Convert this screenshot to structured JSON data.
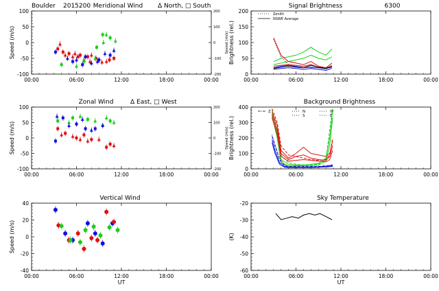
{
  "header": {
    "site": "Boulder",
    "date": "2015200"
  },
  "colors": {
    "red": "#e01010",
    "green": "#18d018",
    "blue": "#1010e0",
    "black": "#000000"
  },
  "time_ticks": [
    "00:00",
    "06:00",
    "12:00",
    "18:00",
    "00:00"
  ],
  "chart_data": [
    {
      "id": "meridional",
      "type": "scatter",
      "title": "Meridional Wind",
      "legend": "Δ North, □ South",
      "ylabel": "Speed (m/s)",
      "ylabel_right": "Speed (m/s)",
      "xlabel": "",
      "xlim": [
        0,
        24
      ],
      "ylim": [
        -100,
        100
      ],
      "yticks": [
        "100",
        "50",
        "0",
        "-50",
        "-100"
      ],
      "yticks_right": [
        "200",
        "100",
        "0",
        "-100",
        "-200"
      ],
      "series": [
        {
          "color": "red",
          "x": [
            3.5,
            4.5,
            5.0,
            5.5,
            6.5,
            7.0,
            7.5,
            8.0,
            9.0,
            10.0,
            11.0,
            3.8,
            4.2,
            5.8,
            6.2,
            7.8,
            8.6,
            9.4,
            10.4
          ],
          "y": [
            -20,
            -40,
            -35,
            -45,
            -40,
            -55,
            -45,
            -40,
            -55,
            -60,
            -50,
            -5,
            -30,
            -35,
            -45,
            -60,
            -50,
            -62,
            -55
          ]
        },
        {
          "color": "green",
          "x": [
            4.0,
            6.0,
            7.0,
            8.5,
            9.5,
            10.0,
            10.5,
            11.2,
            8.7,
            9.6
          ],
          "y": [
            -70,
            -75,
            -60,
            -50,
            25,
            25,
            15,
            5,
            -15,
            0
          ]
        },
        {
          "color": "blue",
          "x": [
            3.2,
            4.8,
            5.5,
            6.0,
            7.2,
            8.0,
            9.0,
            9.8,
            10.5,
            11.0,
            6.8,
            8.8
          ],
          "y": [
            -30,
            -50,
            -60,
            -55,
            -45,
            -65,
            -55,
            -35,
            -40,
            -25,
            -70,
            -60
          ]
        }
      ]
    },
    {
      "id": "zonal",
      "type": "scatter",
      "title": "Zonal Wind",
      "legend": "Δ East, □ West",
      "ylabel": "Speed (m/s)",
      "ylabel_right": "Speed (m/s)",
      "xlabel": "",
      "xlim": [
        0,
        24
      ],
      "ylim": [
        -100,
        100
      ],
      "yticks": [
        "100",
        "50",
        "0",
        "-50",
        "-100"
      ],
      "yticks_right": [
        "200",
        "100",
        "0",
        "-100",
        "-200"
      ],
      "series": [
        {
          "color": "red",
          "x": [
            3.5,
            4.0,
            4.5,
            5.5,
            6.0,
            6.5,
            7.0,
            7.5,
            8.0,
            9.0,
            10.0,
            11.0,
            10.5
          ],
          "y": [
            30,
            10,
            15,
            5,
            0,
            -5,
            10,
            -10,
            -5,
            -5,
            -30,
            -25,
            -20
          ]
        },
        {
          "color": "green",
          "x": [
            3.5,
            5.0,
            5.5,
            6.5,
            7.5,
            8.5,
            9.5,
            10.0,
            10.5,
            11.0
          ],
          "y": [
            55,
            50,
            65,
            70,
            60,
            55,
            40,
            65,
            55,
            50
          ]
        },
        {
          "color": "blue",
          "x": [
            3.2,
            3.4,
            4.2,
            5.0,
            6.0,
            6.8,
            7.2,
            8.0,
            8.5,
            9.5
          ],
          "y": [
            -10,
            70,
            65,
            40,
            45,
            60,
            30,
            25,
            30,
            40
          ]
        }
      ]
    },
    {
      "id": "vertical",
      "type": "scatter",
      "title": "Vertical Wind",
      "ylabel": "Speed (m/s)",
      "xlabel": "UT",
      "xlim": [
        0,
        24
      ],
      "ylim": [
        -50,
        50
      ],
      "yticks": [
        "40",
        "20",
        "0",
        "-20",
        "-40"
      ],
      "series": [
        {
          "color": "blue",
          "x": [
            3.2,
            4.5,
            5.5,
            7.5,
            8.5,
            9.5,
            10.8
          ],
          "y": [
            40,
            5,
            -5,
            20,
            5,
            -10,
            20
          ]
        },
        {
          "color": "red",
          "x": [
            3.6,
            5.0,
            6.2,
            7.0,
            8.0,
            8.8,
            10.0,
            11.0
          ],
          "y": [
            17,
            -5,
            5,
            -18,
            -2,
            -5,
            37,
            22
          ]
        },
        {
          "color": "green",
          "x": [
            4.0,
            5.2,
            6.5,
            7.2,
            8.3,
            9.2,
            10.4,
            11.5
          ],
          "y": [
            16,
            -5,
            -8,
            10,
            15,
            2,
            14,
            10
          ]
        }
      ]
    },
    {
      "id": "signal",
      "type": "line",
      "title": "Signal Brightness",
      "title_right": "6300",
      "ylabel": "Brightness (rel.)",
      "xlabel": "",
      "legend": [
        "Zenith",
        "NSWE Average"
      ],
      "xlim": [
        0,
        24
      ],
      "ylim": [
        0,
        200
      ],
      "yticks": [
        "200",
        "150",
        "100",
        "50",
        "0"
      ],
      "series": [
        {
          "color": "black",
          "dash": "dot",
          "x": [
            3,
            4,
            5,
            6,
            7,
            8,
            9,
            10,
            10.8
          ],
          "y": [
            110,
            55,
            30,
            22,
            25,
            20,
            20,
            15,
            30
          ]
        },
        {
          "color": "green",
          "x": [
            3,
            4,
            5,
            6,
            7,
            8,
            9,
            10,
            10.8
          ],
          "y": [
            40,
            50,
            55,
            60,
            70,
            85,
            70,
            60,
            80
          ]
        },
        {
          "color": "green",
          "x": [
            3,
            4,
            5,
            6,
            7,
            8,
            9,
            10,
            10.8
          ],
          "y": [
            30,
            35,
            40,
            45,
            50,
            60,
            50,
            45,
            55
          ]
        },
        {
          "color": "red",
          "x": [
            3,
            4,
            5,
            6,
            7,
            8,
            9,
            10,
            10.8
          ],
          "y": [
            115,
            60,
            40,
            35,
            30,
            40,
            25,
            20,
            35
          ]
        },
        {
          "color": "red",
          "x": [
            3,
            4,
            5,
            6,
            7,
            8,
            9,
            10,
            10.8
          ],
          "y": [
            25,
            28,
            30,
            28,
            25,
            30,
            22,
            20,
            25
          ]
        },
        {
          "color": "blue",
          "x": [
            3,
            4,
            5,
            6,
            7,
            8,
            9,
            10,
            10.8
          ],
          "y": [
            20,
            25,
            28,
            25,
            20,
            22,
            20,
            18,
            22
          ]
        },
        {
          "color": "blue",
          "x": [
            3,
            4,
            5,
            6,
            7,
            8,
            9,
            10,
            10.8
          ],
          "y": [
            15,
            18,
            20,
            18,
            15,
            18,
            15,
            12,
            18
          ]
        },
        {
          "color": "black",
          "x": [
            3,
            4,
            5,
            6,
            7,
            8,
            9,
            10,
            10.8
          ],
          "y": [
            18,
            22,
            25,
            22,
            20,
            28,
            22,
            18,
            25
          ]
        }
      ]
    },
    {
      "id": "background",
      "type": "line",
      "title": "Background Brightness",
      "ylabel": "Brightness (rel.)",
      "xlabel": "",
      "legend": [
        "Z",
        "N",
        "S",
        "W",
        "E"
      ],
      "xlim": [
        0,
        24
      ],
      "ylim": [
        0,
        400
      ],
      "yticks": [
        "400",
        "300",
        "200",
        "100",
        "0"
      ],
      "series": [
        {
          "color": "green",
          "dash": "dash",
          "x": [
            2.8,
            3.5,
            4,
            5,
            6,
            7,
            8,
            9,
            10,
            10.5,
            10.9
          ],
          "y": [
            380,
            250,
            90,
            40,
            30,
            25,
            25,
            30,
            60,
            250,
            400
          ]
        },
        {
          "color": "green",
          "x": [
            2.8,
            3.5,
            4,
            5,
            6,
            7,
            8,
            9,
            10,
            10.5,
            10.9
          ],
          "y": [
            360,
            230,
            60,
            30,
            25,
            25,
            30,
            35,
            70,
            200,
            380
          ]
        },
        {
          "color": "green",
          "x": [
            2.8,
            3.5,
            4,
            5,
            6,
            7,
            8,
            9,
            10,
            10.5,
            10.9
          ],
          "y": [
            340,
            200,
            40,
            20,
            20,
            20,
            20,
            25,
            50,
            150,
            330
          ]
        },
        {
          "color": "red",
          "dash": "dash",
          "x": [
            2.8,
            3.5,
            4,
            5,
            6,
            7,
            8,
            9,
            10,
            10.5,
            10.9
          ],
          "y": [
            390,
            300,
            150,
            90,
            80,
            70,
            60,
            55,
            60,
            90,
            200
          ]
        },
        {
          "color": "red",
          "x": [
            2.8,
            3.5,
            4,
            5,
            6,
            7,
            8,
            9,
            10,
            10.5,
            10.9
          ],
          "y": [
            370,
            280,
            120,
            70,
            100,
            140,
            100,
            90,
            80,
            100,
            180
          ]
        },
        {
          "color": "red",
          "x": [
            2.8,
            3.5,
            4,
            5,
            6,
            7,
            8,
            9,
            10,
            10.5,
            10.9
          ],
          "y": [
            350,
            250,
            100,
            60,
            80,
            90,
            70,
            60,
            55,
            80,
            150
          ]
        },
        {
          "color": "red",
          "x": [
            2.8,
            3.5,
            4,
            5,
            6,
            7,
            8,
            9,
            10,
            10.5,
            10.9
          ],
          "y": [
            330,
            220,
            80,
            50,
            55,
            60,
            55,
            50,
            45,
            60,
            120
          ]
        },
        {
          "color": "blue",
          "dash": "dash",
          "x": [
            2.8,
            3.2,
            3.8,
            4.5,
            5,
            6,
            7,
            8,
            9,
            10,
            10.9
          ],
          "y": [
            210,
            150,
            60,
            20,
            15,
            15,
            15,
            15,
            15,
            20,
            25
          ]
        },
        {
          "color": "blue",
          "x": [
            2.8,
            3.2,
            3.8,
            4.5,
            5,
            6,
            7,
            8,
            9,
            10,
            10.9
          ],
          "y": [
            190,
            120,
            40,
            15,
            10,
            10,
            10,
            10,
            12,
            15,
            20
          ]
        },
        {
          "color": "blue",
          "x": [
            2.8,
            3.2,
            3.8,
            4.5,
            5,
            6,
            7,
            8,
            9,
            10,
            10.9
          ],
          "y": [
            170,
            100,
            30,
            10,
            8,
            8,
            8,
            8,
            10,
            12,
            15
          ]
        },
        {
          "color": "black",
          "dash": "dot",
          "x": [
            2.8,
            3.2,
            3.8,
            4.5,
            5,
            6,
            7,
            8,
            9,
            10,
            10.9
          ],
          "y": [
            220,
            160,
            70,
            25,
            15,
            12,
            12,
            12,
            14,
            18,
            25
          ]
        }
      ]
    },
    {
      "id": "skytemp",
      "type": "line",
      "title": "Sky Temperature",
      "ylabel": "(K)",
      "xlabel": "UT",
      "xlim": [
        0,
        24
      ],
      "ylim": [
        -60,
        -15
      ],
      "yticks": [
        "-20",
        "-30",
        "-40",
        "-50",
        "-60"
      ],
      "series": [
        {
          "color": "black",
          "x": [
            3.3,
            4.0,
            4.8,
            5.5,
            6.3,
            7.0,
            7.8,
            8.5,
            9.2,
            10.0,
            10.8
          ],
          "y": [
            -22,
            -26,
            -25,
            -24,
            -25,
            -23,
            -22,
            -23,
            -22,
            -24,
            -26
          ]
        }
      ]
    }
  ]
}
